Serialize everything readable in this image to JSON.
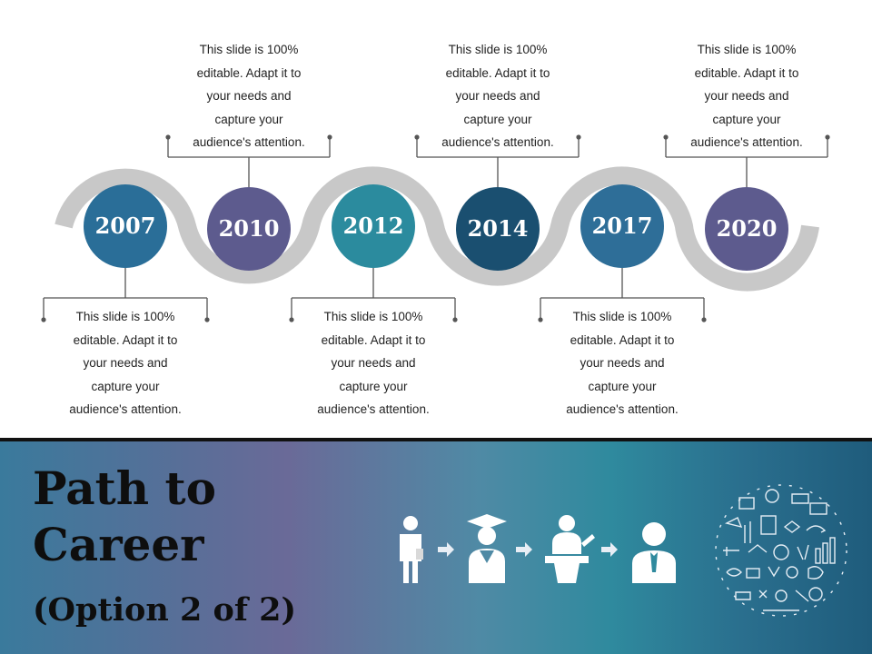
{
  "timeline": {
    "milestones": [
      {
        "year": "2007",
        "color": "#2a6e98",
        "note_position": "below",
        "note": [
          "This slide is 100%",
          "editable. Adapt it to",
          "your needs and",
          "capture your",
          "audience's attention."
        ]
      },
      {
        "year": "2010",
        "color": "#5d5b8e",
        "note_position": "above",
        "note": [
          "This slide is 100%",
          "editable. Adapt it to",
          "your needs and",
          "capture your",
          "audience's attention."
        ]
      },
      {
        "year": "2012",
        "color": "#2b8b9e",
        "note_position": "below",
        "note": [
          "This slide is 100%",
          "editable. Adapt it to",
          "your needs and",
          "capture your",
          "audience's attention."
        ]
      },
      {
        "year": "2014",
        "color": "#1a4f70",
        "note_position": "above",
        "note": [
          "This slide is 100%",
          "editable. Adapt it to",
          "your needs and",
          "capture your",
          "audience's attention."
        ]
      },
      {
        "year": "2017",
        "color": "#2e6e98",
        "note_position": "below",
        "note": [
          "This slide is 100%",
          "editable. Adapt it to",
          "your needs and",
          "capture your",
          "audience's attention."
        ]
      },
      {
        "year": "2020",
        "color": "#5d5b8e",
        "note_position": "above",
        "note": [
          "This slide is 100%",
          "editable. Adapt it to",
          "your needs and",
          "capture your",
          "audience's attention."
        ]
      }
    ],
    "track_color": "#c8c8c8",
    "connector_color": "#555555"
  },
  "footer": {
    "title_line1": "Path to",
    "title_line2": "Career",
    "subtitle": "(Option 2 of 2)",
    "icons": [
      "student-icon",
      "graduate-icon",
      "speaker-at-podium-icon",
      "professional-icon"
    ],
    "decoration": "education-doodle-circle-icon"
  }
}
